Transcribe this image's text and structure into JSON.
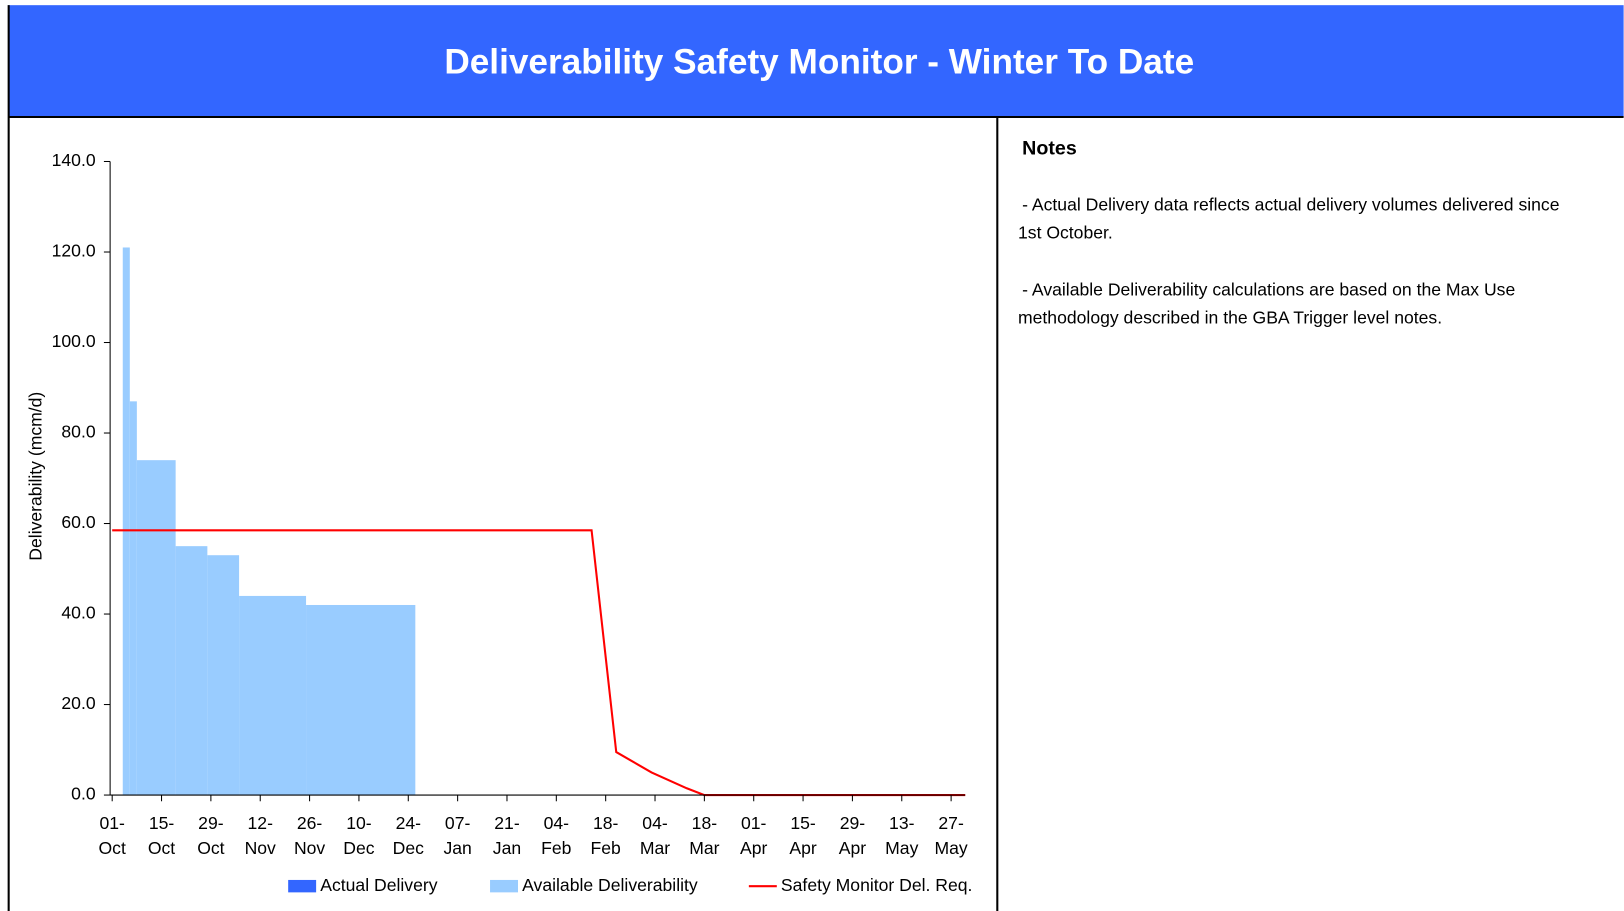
{
  "header": {
    "title": "Deliverability Safety Monitor - Winter To Date"
  },
  "notes": {
    "title": "Notes",
    "items": [
      [
        "- Actual Delivery data reflects actual delivery volumes delivered since",
        "1st October."
      ],
      [
        "- Available Deliverability calculations are based on the Max Use",
        "methodology described in the GBA Trigger level notes."
      ]
    ]
  },
  "chart_data": {
    "type": "step",
    "ylabel": "Deliverability (mcm/d)",
    "ylim": [
      0,
      140
    ],
    "yticks": [
      {
        "value": 0,
        "label": "0.0"
      },
      {
        "value": 20,
        "label": "20.0"
      },
      {
        "value": 40,
        "label": "40.0"
      },
      {
        "value": 60,
        "label": "60.0"
      },
      {
        "value": 80,
        "label": "80.0"
      },
      {
        "value": 100,
        "label": "100.0"
      },
      {
        "value": 120,
        "label": "120.0"
      },
      {
        "value": 140,
        "label": "140.0"
      }
    ],
    "xlim": [
      "01-Oct",
      "31-May"
    ],
    "xticks": [
      "01-Oct",
      "15-Oct",
      "29-Oct",
      "12-Nov",
      "26-Nov",
      "10-Dec",
      "24-Dec",
      "07-Jan",
      "21-Jan",
      "04-Feb",
      "18-Feb",
      "04-Mar",
      "18-Mar",
      "01-Apr",
      "15-Apr",
      "29-Apr",
      "13-May",
      "27-May"
    ],
    "series": [
      {
        "name": "Actual Delivery",
        "color": "#3366ff",
        "kind": "area",
        "x": [],
        "values": []
      },
      {
        "name": "Available Deliverability",
        "color": "#99ccff",
        "kind": "area",
        "x": [
          "04-Oct",
          "06-Oct",
          "08-Oct",
          "19-Oct",
          "28-Oct",
          "06-Nov",
          "25-Nov",
          "26-Dec"
        ],
        "values": [
          121,
          87,
          74,
          55,
          53,
          44,
          42,
          null
        ]
      },
      {
        "name": "Safety Monitor Del. Req.",
        "color": "#ff0000",
        "kind": "line",
        "x": [
          "01-Oct",
          "14-Feb",
          "21-Feb",
          "03-Mar",
          "13-Mar",
          "18-Mar",
          "31-May"
        ],
        "values": [
          58.5,
          58.5,
          9.5,
          5,
          1.5,
          0,
          0
        ]
      }
    ]
  }
}
